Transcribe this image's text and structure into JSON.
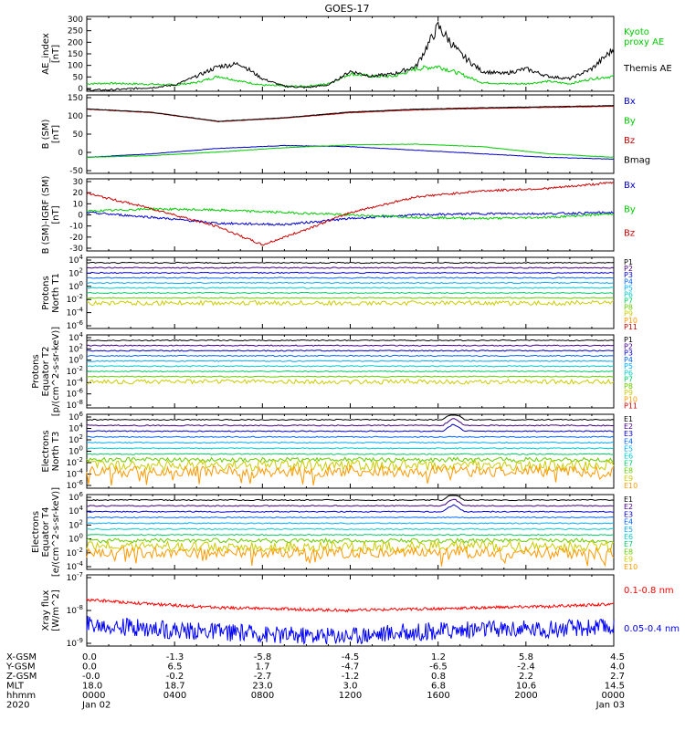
{
  "title": "GOES-17",
  "colors": {
    "ae_kyoto": "#00cc00",
    "ae_themis": "#000000",
    "bx": "#0000cc",
    "by": "#00cc00",
    "bz": "#cc0000",
    "bmag": "#000000",
    "xray_long": "#ff0000",
    "xray_short": "#0000ff"
  },
  "chart_data": [
    {
      "id": "ae",
      "type": "line",
      "ylabel": "AE_index\n[nT]",
      "ylim": [
        0,
        300
      ],
      "yticks": [
        "300",
        "250",
        "200",
        "150",
        "100",
        "50",
        "0"
      ],
      "series": [
        {
          "name": "Kyoto\nproxy AE",
          "color": "#00cc00",
          "x": [
            0,
            1,
            2,
            3,
            4,
            5,
            6,
            7,
            8,
            9,
            10,
            11,
            12,
            13,
            14,
            15,
            16,
            17,
            18,
            19,
            20,
            21,
            22,
            23,
            24
          ],
          "y": [
            30,
            32,
            30,
            28,
            25,
            35,
            60,
            40,
            25,
            20,
            20,
            30,
            70,
            60,
            60,
            90,
            100,
            70,
            35,
            30,
            30,
            40,
            30,
            50,
            60
          ]
        },
        {
          "name": "Themis AE",
          "color": "#000000",
          "x": [
            0,
            1,
            2,
            3,
            4,
            5,
            6,
            7,
            8,
            9,
            10,
            11,
            12,
            13,
            14,
            15,
            16,
            17,
            18,
            19,
            20,
            21,
            22,
            23,
            24
          ],
          "y": [
            5,
            5,
            10,
            15,
            25,
            60,
            100,
            110,
            50,
            20,
            15,
            25,
            80,
            60,
            70,
            100,
            260,
            150,
            80,
            70,
            90,
            60,
            50,
            90,
            170
          ]
        }
      ]
    },
    {
      "id": "bsm",
      "type": "line",
      "ylabel": "B (SM)\n[nT]",
      "ylim": [
        -60,
        160
      ],
      "yticks": [
        "150",
        "100",
        "50",
        "0",
        "-50"
      ],
      "series": [
        {
          "name": "Bx",
          "color": "#0000cc",
          "x": [
            0,
            3,
            6,
            9,
            12,
            15,
            18,
            21,
            24
          ],
          "y": [
            -15,
            -5,
            10,
            18,
            15,
            5,
            -5,
            -15,
            -20
          ]
        },
        {
          "name": "By",
          "color": "#00cc00",
          "x": [
            0,
            3,
            6,
            9,
            12,
            15,
            18,
            21,
            24
          ],
          "y": [
            -15,
            -10,
            0,
            12,
            20,
            22,
            15,
            -5,
            -15
          ]
        },
        {
          "name": "Bz",
          "color": "#cc0000",
          "x": [
            0,
            3,
            6,
            9,
            12,
            15,
            18,
            21,
            24
          ],
          "y": [
            120,
            110,
            85,
            95,
            110,
            118,
            122,
            125,
            128
          ]
        },
        {
          "name": "Bmag",
          "color": "#000000",
          "x": [
            0,
            3,
            6,
            9,
            12,
            15,
            18,
            21,
            24
          ],
          "y": [
            121,
            111,
            86,
            96,
            112,
            120,
            124,
            127,
            130
          ]
        }
      ]
    },
    {
      "id": "bigrf",
      "type": "line",
      "ylabel": "B (SM)-IGRF (SM)\n[nT]",
      "ylim": [
        -30,
        30
      ],
      "yticks": [
        "30",
        "20",
        "10",
        "0",
        "-10",
        "-20",
        "-30"
      ],
      "series": [
        {
          "name": "Bx",
          "color": "#0000cc",
          "x": [
            0,
            3,
            6,
            9,
            12,
            15,
            18,
            21,
            24
          ],
          "y": [
            2,
            -2,
            -7,
            -8,
            -3,
            0,
            1,
            1,
            2
          ]
        },
        {
          "name": "By",
          "color": "#00cc00",
          "x": [
            0,
            3,
            6,
            9,
            12,
            15,
            18,
            21,
            24
          ],
          "y": [
            3,
            5,
            4,
            2,
            0,
            -2,
            -3,
            -2,
            1
          ]
        },
        {
          "name": "Bz",
          "color": "#cc0000",
          "x": [
            0,
            3,
            6,
            8,
            10,
            12,
            15,
            18,
            21,
            24
          ],
          "y": [
            18,
            5,
            -10,
            -25,
            -12,
            2,
            15,
            20,
            22,
            27
          ]
        }
      ]
    },
    {
      "id": "pn",
      "type": "line",
      "ylabel": "Protons\nNorth T1",
      "scale": "log",
      "yticks": [
        "10^4",
        "10^2",
        "10^0",
        "10^-2",
        "10^-4",
        "10^-6"
      ],
      "channels": [
        "P1",
        "P2",
        "P3",
        "P4",
        "P5",
        "P6",
        "P7",
        "P8",
        "P9",
        "P10",
        "P11"
      ]
    },
    {
      "id": "pe",
      "type": "line",
      "ylabel": "Protons\nEquator T2\n[p/(cm^2-s-sr-keV)]",
      "scale": "log",
      "yticks": [
        "10^4",
        "10^2",
        "10^0",
        "10^-2",
        "10^-4",
        "10^-6",
        "10^-8"
      ],
      "channels": [
        "P1",
        "P2",
        "P3",
        "P4",
        "P5",
        "P6",
        "P7",
        "P8",
        "P9",
        "P10",
        "P11"
      ]
    },
    {
      "id": "en",
      "type": "line",
      "ylabel": "Electrons\nNorth T3",
      "scale": "log",
      "yticks": [
        "10^6",
        "10^4",
        "10^2",
        "10^0",
        "10^-2",
        "10^-4",
        "10^-6"
      ],
      "channels": [
        "E1",
        "E2",
        "E3",
        "E4",
        "E5",
        "E6",
        "E7",
        "E8",
        "E9",
        "E10"
      ]
    },
    {
      "id": "ee",
      "type": "line",
      "ylabel": "Electrons\nEquator T4\n[e/(cm^2-s-sr-keV)]",
      "scale": "log",
      "yticks": [
        "10^6",
        "10^4",
        "10^2",
        "10^0",
        "10^-2",
        "10^-4"
      ],
      "channels": [
        "E1",
        "E2",
        "E3",
        "E4",
        "E5",
        "E6",
        "E7",
        "E8",
        "E9",
        "E10"
      ]
    },
    {
      "id": "xray",
      "type": "line",
      "ylabel": "Xray flux\n[W/m^2]",
      "scale": "log",
      "yticks": [
        "10^-7",
        "10^-8",
        "10^-9"
      ],
      "series": [
        {
          "name": "0.1-0.8 nm",
          "color": "#ff0000",
          "x": [
            0,
            3,
            6,
            9,
            12,
            15,
            18,
            21,
            24
          ],
          "y": [
            2e-08,
            1.5e-08,
            1.2e-08,
            1.1e-08,
            1e-08,
            1.1e-08,
            1.2e-08,
            1.3e-08,
            1.5e-08
          ]
        },
        {
          "name": "0.05-0.4 nm",
          "color": "#0000ff",
          "x": [
            0,
            3,
            6,
            9,
            12,
            15,
            18,
            21,
            24
          ],
          "y": [
            4e-09,
            3e-09,
            2.5e-09,
            2e-09,
            2e-09,
            2.5e-09,
            3e-09,
            3e-09,
            3.5e-09
          ]
        }
      ]
    }
  ],
  "ephemeris": {
    "rows": [
      {
        "label": "X-GSM",
        "values": [
          "0.0",
          "-1.3",
          "-5.8",
          "-4.5",
          "1.2",
          "5.8",
          "4.5"
        ]
      },
      {
        "label": "Y-GSM",
        "values": [
          "0.0",
          "6.5",
          "1.7",
          "-4.7",
          "-6.5",
          "-2.4",
          "4.0"
        ]
      },
      {
        "label": "Z-GSM",
        "values": [
          "-0.0",
          "-0.2",
          "-2.7",
          "-1.2",
          "0.8",
          "2.2",
          "2.7"
        ]
      },
      {
        "label": "MLT",
        "values": [
          "18.0",
          "18.7",
          "23.0",
          "3.0",
          "6.8",
          "10.6",
          "14.5"
        ]
      },
      {
        "label": "hhmm",
        "values": [
          "0000",
          "0400",
          "0800",
          "1200",
          "1600",
          "2000",
          "0000"
        ]
      },
      {
        "label": "2020",
        "values": [
          "Jan 02",
          "",
          "",
          "",
          "",
          "",
          "Jan 03"
        ]
      }
    ]
  }
}
